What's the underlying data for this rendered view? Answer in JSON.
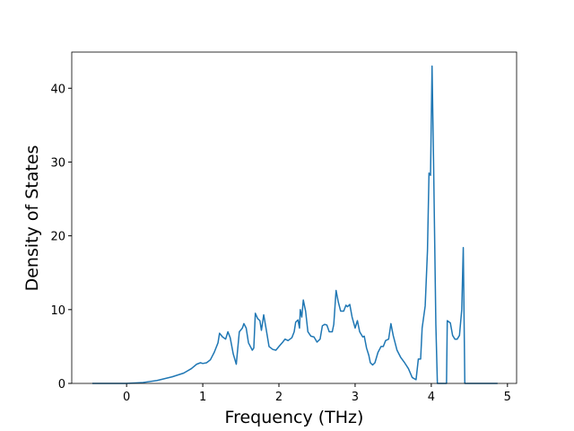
{
  "chart_data": {
    "type": "line",
    "xlabel": "Frequency (THz)",
    "ylabel": "Density of States",
    "color": "#1f77b4",
    "x": [
      -0.45,
      0,
      0.2,
      0.4,
      0.6,
      0.75,
      0.85,
      0.92,
      0.97,
      1.0,
      1.05,
      1.1,
      1.15,
      1.2,
      1.22,
      1.26,
      1.3,
      1.33,
      1.36,
      1.4,
      1.44,
      1.48,
      1.52,
      1.54,
      1.57,
      1.6,
      1.65,
      1.67,
      1.69,
      1.72,
      1.75,
      1.77,
      1.8,
      1.83,
      1.87,
      1.92,
      1.96,
      2.0,
      2.05,
      2.08,
      2.12,
      2.17,
      2.2,
      2.22,
      2.25,
      2.27,
      2.28,
      2.3,
      2.32,
      2.35,
      2.38,
      2.42,
      2.46,
      2.5,
      2.54,
      2.57,
      2.6,
      2.63,
      2.66,
      2.7,
      2.72,
      2.75,
      2.78,
      2.81,
      2.85,
      2.88,
      2.9,
      2.93,
      2.96,
      3.0,
      3.03,
      3.06,
      3.1,
      3.12,
      3.15,
      3.18,
      3.2,
      3.23,
      3.26,
      3.3,
      3.34,
      3.37,
      3.4,
      3.44,
      3.47,
      3.5,
      3.55,
      3.6,
      3.65,
      3.7,
      3.75,
      3.8,
      3.83,
      3.86,
      3.88,
      3.92,
      3.95,
      3.97,
      3.99,
      4.01,
      4.03,
      4.06,
      4.08,
      4.2,
      4.21,
      4.25,
      4.28,
      4.31,
      4.34,
      4.37,
      4.4,
      4.42,
      4.44,
      4.87
    ],
    "values": [
      0,
      0,
      0.1,
      0.4,
      0.9,
      1.4,
      2.0,
      2.6,
      2.8,
      2.7,
      2.8,
      3.2,
      4.2,
      5.5,
      6.8,
      6.3,
      6.0,
      7.0,
      6.2,
      4.0,
      2.6,
      7.0,
      7.5,
      8.1,
      7.5,
      5.5,
      4.5,
      4.8,
      9.5,
      8.8,
      8.5,
      7.2,
      9.3,
      7.5,
      5.0,
      4.6,
      4.5,
      5.0,
      5.6,
      6.0,
      5.8,
      6.2,
      7.0,
      8.3,
      8.6,
      7.5,
      10.0,
      9.0,
      11.3,
      9.8,
      7.0,
      6.4,
      6.3,
      5.6,
      6.0,
      7.8,
      8.0,
      7.9,
      7.0,
      7.0,
      8.0,
      12.6,
      11.0,
      9.8,
      9.8,
      10.6,
      10.4,
      10.7,
      9.0,
      7.5,
      8.5,
      7.0,
      6.3,
      6.4,
      4.8,
      3.8,
      2.8,
      2.5,
      2.8,
      4.2,
      5.0,
      5.0,
      5.8,
      6.0,
      8.1,
      6.5,
      4.5,
      3.5,
      2.8,
      2.0,
      0.8,
      0.5,
      3.3,
      3.3,
      7.5,
      10.5,
      18,
      28.5,
      28.2,
      43,
      30,
      8,
      0,
      0,
      8.5,
      8.2,
      6.5,
      6.0,
      6.0,
      6.5,
      10,
      18.4,
      0,
      0
    ],
    "xlim": [
      -0.72,
      5.12
    ],
    "ylim": [
      0,
      44.9
    ],
    "xticks": [
      0,
      1,
      2,
      3,
      4,
      5
    ],
    "yticks": [
      0,
      10,
      20,
      30,
      40
    ]
  }
}
